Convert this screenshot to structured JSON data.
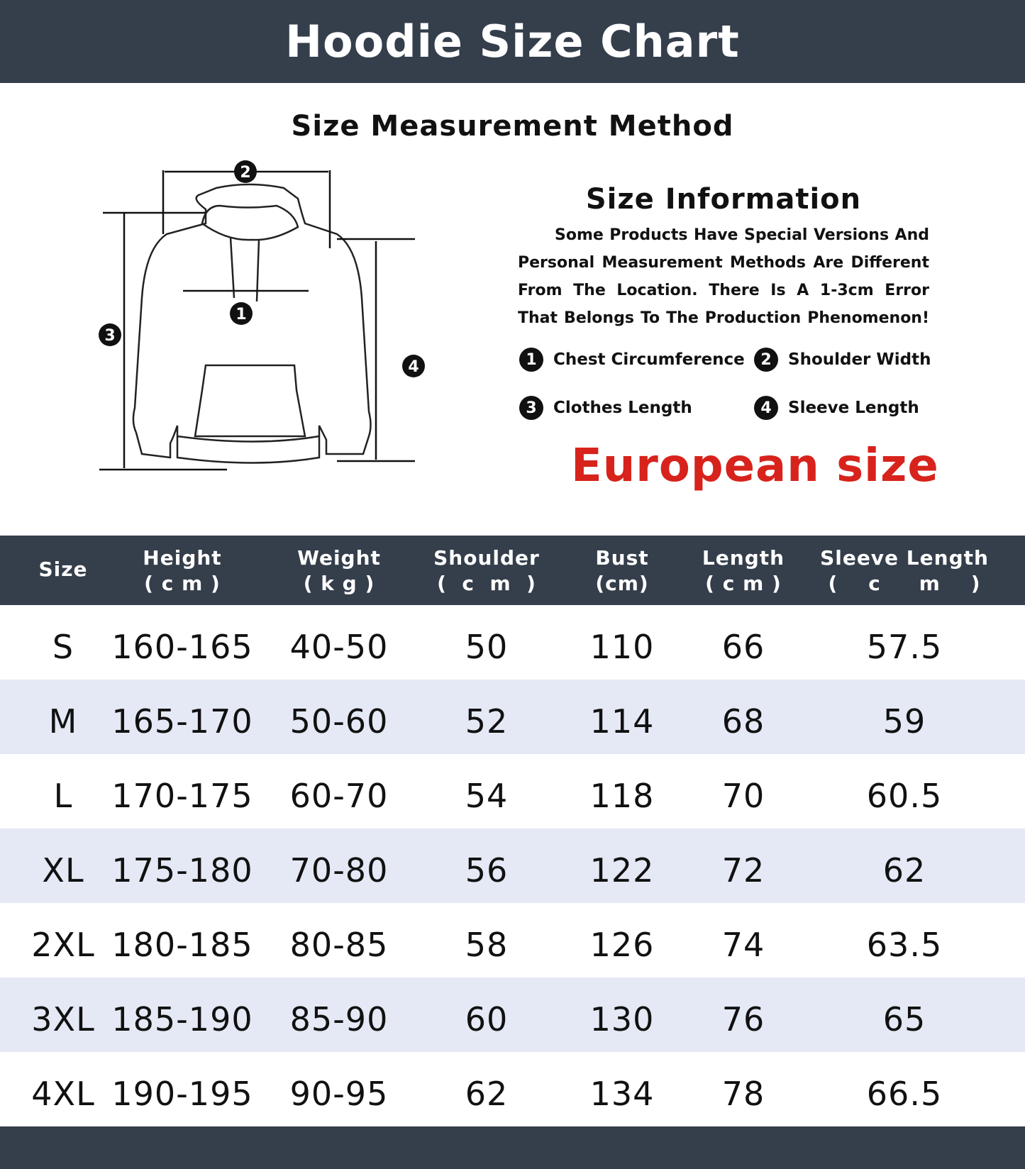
{
  "title": "Hoodie Size Chart",
  "method_title": "Size Measurement Method",
  "info": {
    "title": "Size Information",
    "text": "Some Products Have Special Versions And Personal Measurement Methods Are Different From The Location. There Is A 1-3cm Error That Belongs To The Production Phenomenon!",
    "legend": [
      {
        "num": "1",
        "label": "Chest Circumference"
      },
      {
        "num": "2",
        "label": "Shoulder Width"
      },
      {
        "num": "3",
        "label": "Clothes Length"
      },
      {
        "num": "4",
        "label": "Sleeve Length"
      }
    ],
    "region": "European size"
  },
  "diagram_markers": [
    "1",
    "2",
    "3",
    "4"
  ],
  "colors": {
    "header": "#353e4b",
    "shade": "#e4e9f5",
    "accent": "#d7231c"
  },
  "table": {
    "headers": [
      {
        "label": "Size",
        "unit": ""
      },
      {
        "label": "Height",
        "unit": "( c m )"
      },
      {
        "label": "Weight",
        "unit": "( k g )"
      },
      {
        "label": "Shoulder",
        "unit": "(  c  m  )"
      },
      {
        "label": "Bust",
        "unit": "(cm)"
      },
      {
        "label": "Length",
        "unit": "( c m )"
      },
      {
        "label": "Sleeve Length",
        "unit": "(    c     m    )"
      }
    ],
    "rows": [
      [
        "S",
        "160-165",
        "40-50",
        "50",
        "110",
        "66",
        "57.5"
      ],
      [
        "M",
        "165-170",
        "50-60",
        "52",
        "114",
        "68",
        "59"
      ],
      [
        "L",
        "170-175",
        "60-70",
        "54",
        "118",
        "70",
        "60.5"
      ],
      [
        "XL",
        "175-180",
        "70-80",
        "56",
        "122",
        "72",
        "62"
      ],
      [
        "2XL",
        "180-185",
        "80-85",
        "58",
        "126",
        "74",
        "63.5"
      ],
      [
        "3XL",
        "185-190",
        "85-90",
        "60",
        "130",
        "76",
        "65"
      ],
      [
        "4XL",
        "190-195",
        "90-95",
        "62",
        "134",
        "78",
        "66.5"
      ]
    ]
  }
}
